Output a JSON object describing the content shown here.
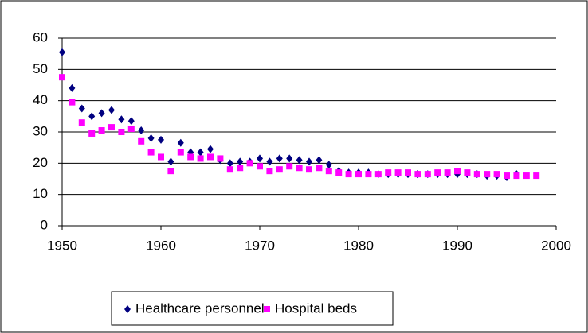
{
  "chart_data": {
    "type": "scatter",
    "xlim": [
      1950,
      2000
    ],
    "xticks": [
      1950,
      1960,
      1970,
      1980,
      1990,
      2000
    ],
    "ylim": [
      0,
      60
    ],
    "yticks": [
      0,
      10,
      20,
      30,
      40,
      50,
      60
    ],
    "grid": true,
    "legend": "bottom",
    "series": [
      {
        "name": "Healthcare personnel",
        "color": "#000080",
        "marker": "diamond",
        "x": [
          1950,
          1951,
          1952,
          1953,
          1954,
          1955,
          1956,
          1957,
          1958,
          1959,
          1960,
          1961,
          1962,
          1963,
          1964,
          1965,
          1966,
          1967,
          1968,
          1969,
          1970,
          1971,
          1972,
          1973,
          1974,
          1975,
          1976,
          1977,
          1978,
          1979,
          1980,
          1981,
          1982,
          1983,
          1984,
          1985,
          1986,
          1987,
          1988,
          1989,
          1990,
          1991,
          1992,
          1993,
          1994,
          1995,
          1996
        ],
        "values": [
          55.5,
          44,
          37.5,
          35,
          36,
          37,
          34,
          33.5,
          30.5,
          28,
          27.5,
          20.5,
          26.5,
          23.5,
          23.5,
          24.5,
          21,
          20,
          20.5,
          20.5,
          21.5,
          20.5,
          21.5,
          21.5,
          21,
          20.5,
          21,
          19.5,
          17.5,
          17,
          17,
          17,
          16.5,
          16.5,
          16.5,
          16.5,
          16.5,
          16.5,
          16.5,
          16.5,
          16.5,
          16.5,
          16.5,
          16,
          16,
          15.5,
          16.5
        ]
      },
      {
        "name": "Hospital beds",
        "color": "#ff00ff",
        "marker": "square",
        "x": [
          1950,
          1951,
          1952,
          1953,
          1954,
          1955,
          1956,
          1957,
          1958,
          1959,
          1960,
          1961,
          1962,
          1963,
          1964,
          1965,
          1966,
          1967,
          1968,
          1969,
          1970,
          1971,
          1972,
          1973,
          1974,
          1975,
          1976,
          1977,
          1978,
          1979,
          1980,
          1981,
          1982,
          1983,
          1984,
          1985,
          1986,
          1987,
          1988,
          1989,
          1990,
          1991,
          1992,
          1993,
          1994,
          1995,
          1996,
          1997,
          1998
        ],
        "values": [
          47.5,
          39.5,
          33,
          29.5,
          30.5,
          31.5,
          30,
          31,
          27,
          23.5,
          22,
          17.5,
          23.5,
          22,
          21.5,
          22,
          21.5,
          18,
          18.5,
          20,
          19,
          17.5,
          18,
          19,
          18.5,
          18,
          18.5,
          17.5,
          17,
          16.5,
          16.5,
          16.5,
          16.5,
          17,
          17,
          17,
          16.5,
          16.5,
          17,
          17,
          17.5,
          17,
          16.5,
          16.5,
          16.5,
          16,
          16,
          16,
          16
        ]
      }
    ]
  }
}
